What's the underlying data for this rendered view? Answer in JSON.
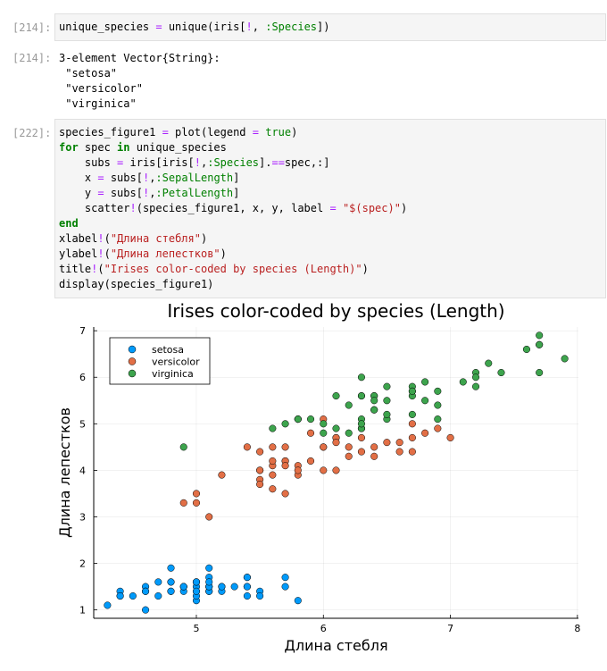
{
  "cells": [
    {
      "prompt": "[214]:",
      "input": [
        "unique_species = unique(iris[!, :Species])"
      ]
    },
    {
      "prompt": "[214]:",
      "output": [
        "3-element Vector{String}:",
        " \"setosa\"",
        " \"versicolor\"",
        " \"virginica\""
      ]
    },
    {
      "prompt": "[222]:",
      "input": [
        "species_figure1 = plot(legend = true)",
        "for spec in unique_species",
        "    subs = iris[iris[!,:Species].==spec,:]",
        "    x = subs[!,:SepalLength]",
        "    y = subs[!,:PetalLength]",
        "    scatter!(species_figure1, x, y, label = \"$(spec)\")",
        "end",
        "xlabel!(\"Длина стебля\")",
        "ylabel!(\"Длина лепестков\")",
        "title!(\"Irises color-coded by species (Length)\")",
        "display(species_figure1)"
      ]
    }
  ],
  "chart_data": {
    "type": "scatter",
    "title": "Irises color-coded by species (Length)",
    "x_label": "Длина стебля",
    "y_label": "Длина лепестков",
    "xlim": [
      4.192,
      8.008
    ],
    "ylim": [
      0.82,
      7.08
    ],
    "xticks": [
      5,
      6,
      7,
      8
    ],
    "yticks": [
      1,
      2,
      3,
      4,
      5,
      6,
      7
    ],
    "grid": true,
    "legend": "top-left",
    "series": [
      {
        "name": "setosa",
        "color": "#009afa",
        "x": [
          5.1,
          4.9,
          4.7,
          4.6,
          5.0,
          5.4,
          4.6,
          5.0,
          4.4,
          4.9,
          5.4,
          4.8,
          4.8,
          4.3,
          5.8,
          5.7,
          5.4,
          5.1,
          5.7,
          5.1,
          5.4,
          5.1,
          4.6,
          5.1,
          4.8,
          5.0,
          5.0,
          5.2,
          5.2,
          4.7,
          4.8,
          5.4,
          5.2,
          5.5,
          4.9,
          5.0,
          5.5,
          4.9,
          4.4,
          5.1,
          5.0,
          4.5,
          4.4,
          5.0,
          5.1,
          4.8,
          5.1,
          4.6,
          5.3,
          5.0
        ],
        "values": [
          1.4,
          1.4,
          1.3,
          1.5,
          1.4,
          1.7,
          1.4,
          1.5,
          1.4,
          1.5,
          1.5,
          1.6,
          1.4,
          1.1,
          1.2,
          1.5,
          1.3,
          1.4,
          1.7,
          1.5,
          1.7,
          1.5,
          1.0,
          1.7,
          1.9,
          1.6,
          1.6,
          1.5,
          1.4,
          1.6,
          1.6,
          1.5,
          1.5,
          1.4,
          1.5,
          1.2,
          1.3,
          1.5,
          1.3,
          1.5,
          1.3,
          1.3,
          1.3,
          1.6,
          1.9,
          1.4,
          1.6,
          1.4,
          1.5,
          1.4
        ]
      },
      {
        "name": "versicolor",
        "color": "#e26f46",
        "x": [
          7.0,
          6.4,
          6.9,
          5.5,
          6.5,
          5.7,
          6.3,
          4.9,
          6.6,
          5.2,
          5.0,
          5.9,
          6.0,
          6.1,
          5.6,
          6.7,
          5.6,
          5.8,
          6.2,
          5.6,
          5.9,
          6.1,
          6.3,
          6.1,
          6.4,
          6.6,
          6.8,
          6.7,
          6.0,
          5.7,
          5.5,
          5.5,
          5.8,
          6.0,
          5.4,
          6.0,
          6.7,
          6.3,
          5.6,
          5.5,
          5.5,
          6.1,
          5.8,
          5.0,
          5.6,
          5.7,
          5.7,
          6.2,
          5.1,
          5.7
        ],
        "values": [
          4.7,
          4.5,
          4.9,
          4.0,
          4.6,
          4.5,
          4.7,
          3.3,
          4.6,
          3.9,
          3.5,
          4.2,
          4.0,
          4.7,
          3.6,
          4.4,
          4.5,
          4.1,
          4.5,
          3.9,
          4.8,
          4.0,
          4.9,
          4.7,
          4.3,
          4.4,
          4.8,
          5.0,
          4.5,
          3.5,
          3.8,
          3.7,
          3.9,
          5.1,
          4.5,
          4.5,
          4.7,
          4.4,
          4.1,
          4.0,
          4.4,
          4.6,
          4.0,
          3.3,
          4.2,
          4.2,
          4.2,
          4.3,
          3.0,
          4.1
        ]
      },
      {
        "name": "virginica",
        "color": "#3da44d",
        "x": [
          6.3,
          5.8,
          7.1,
          6.3,
          6.5,
          7.6,
          4.9,
          7.3,
          6.7,
          7.2,
          6.5,
          6.4,
          6.8,
          5.7,
          5.8,
          6.4,
          6.5,
          7.7,
          7.7,
          6.0,
          6.9,
          5.6,
          7.7,
          6.3,
          6.7,
          7.2,
          6.2,
          6.1,
          6.4,
          7.2,
          7.4,
          7.9,
          6.4,
          6.3,
          6.1,
          7.7,
          6.3,
          6.4,
          6.0,
          6.9,
          6.7,
          6.9,
          5.8,
          6.8,
          6.7,
          6.7,
          6.3,
          6.5,
          6.2,
          5.9
        ],
        "values": [
          6.0,
          5.1,
          5.9,
          5.6,
          5.8,
          6.6,
          4.5,
          6.3,
          5.8,
          6.1,
          5.1,
          5.3,
          5.5,
          5.0,
          5.1,
          5.3,
          5.5,
          6.7,
          6.9,
          5.0,
          5.7,
          4.9,
          6.7,
          4.9,
          5.7,
          6.0,
          4.8,
          4.9,
          5.6,
          5.8,
          6.1,
          6.4,
          5.6,
          5.1,
          5.6,
          6.1,
          5.6,
          5.5,
          4.8,
          5.4,
          5.6,
          5.1,
          5.1,
          5.9,
          5.7,
          5.2,
          5.0,
          5.2,
          5.4,
          5.1
        ]
      }
    ]
  }
}
